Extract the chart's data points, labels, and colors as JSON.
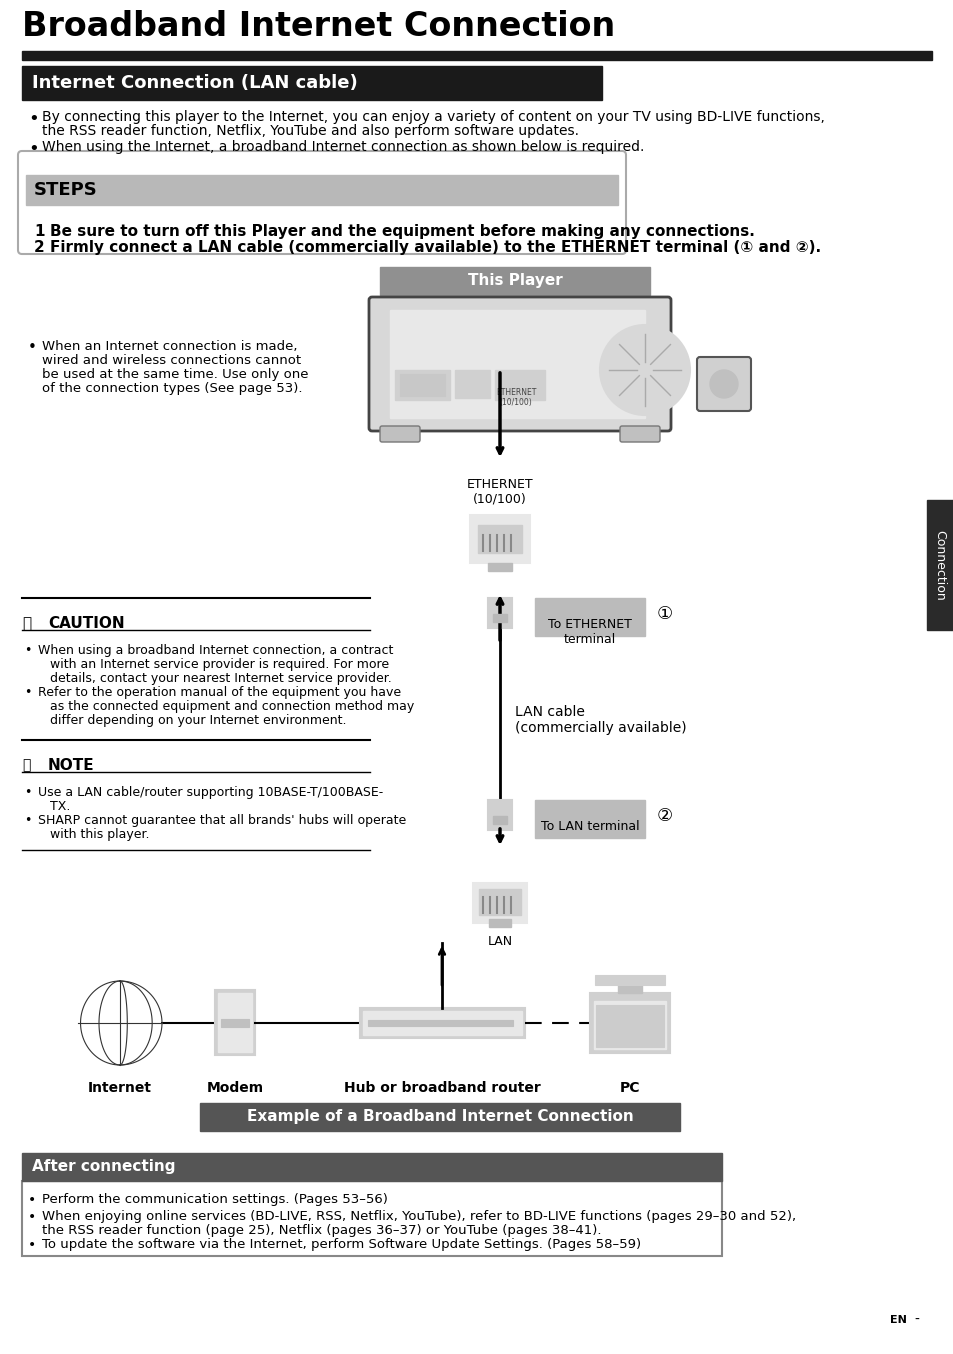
{
  "title": "Broadband Internet Connection",
  "section_header": "Internet Connection (LAN cable)",
  "bullet1_line1": "By connecting this player to the Internet, you can enjoy a variety of content on your TV using BD-LIVE functions,",
  "bullet1_line2": "the RSS reader function, Netflix, YouTube and also perform software updates.",
  "bullet2": "When using the Internet, a broadband Internet connection as shown below is required.",
  "steps_title": "STEPS",
  "step1": "Be sure to turn off this Player and the equipment before making any connections.",
  "step2": "Firmly connect a LAN cable (commercially available) to the ETHERNET terminal (① and ②).",
  "this_player_label": "This Player",
  "ethernet_label": "ETHERNET\n(10/100)",
  "to_ethernet_label": "To ETHERNET\nterminal",
  "lan_cable_label": "LAN cable\n(commercially available)",
  "to_lan_label": "To LAN terminal",
  "lan_label": "LAN",
  "internet_label": "Internet",
  "modem_label": "Modem",
  "hub_label": "Hub or broadband router",
  "pc_label": "PC",
  "example_label": "Example of a Broadband Internet Connection",
  "caution_title": "CAUTION",
  "caution1_line1": "When using a broadband Internet connection, a contract",
  "caution1_line2": "with an Internet service provider is required. For more",
  "caution1_line3": "details, contact your nearest Internet service provider.",
  "caution2_line1": "Refer to the operation manual of the equipment you have",
  "caution2_line2": "as the connected equipment and connection method may",
  "caution2_line3": "differ depending on your Internet environment.",
  "note_title": "NOTE",
  "note1_line1": "Use a LAN cable/router supporting 10BASE-T/100BASE-",
  "note1_line2": "TX.",
  "note2_line1": "SHARP cannot guarantee that all brands' hubs will operate",
  "note2_line2": "with this player.",
  "after_title": "After connecting",
  "after1": "Perform the communication settings. (Pages 53–56)",
  "after2_line1": "When enjoying online services (BD-LIVE, RSS, Netflix, YouTube), refer to BD-LIVE functions (pages 29–30 and 52),",
  "after2_line2": "the RSS reader function (page 25), Netflix (pages 36–37) or YouTube (pages 38–41).",
  "after3": "To update the software via the Internet, perform Software Update Settings. (Pages 58–59)",
  "note_bullet_left": "When an Internet connection is made,",
  "note_bullet_l2": "wired and wireless connections cannot",
  "note_bullet_l3": "be used at the same time. Use only one",
  "note_bullet_l4": "of the connection types (See page 53).",
  "connection_side_label": "Connection",
  "bg_color": "#ffffff",
  "dark_color": "#1a1a1a",
  "gray_steps": "#b8b8b8",
  "gray_mid": "#888888",
  "gray_tag": "#999999",
  "side_tab_color": "#2a2a2a",
  "after_header_color": "#555555"
}
